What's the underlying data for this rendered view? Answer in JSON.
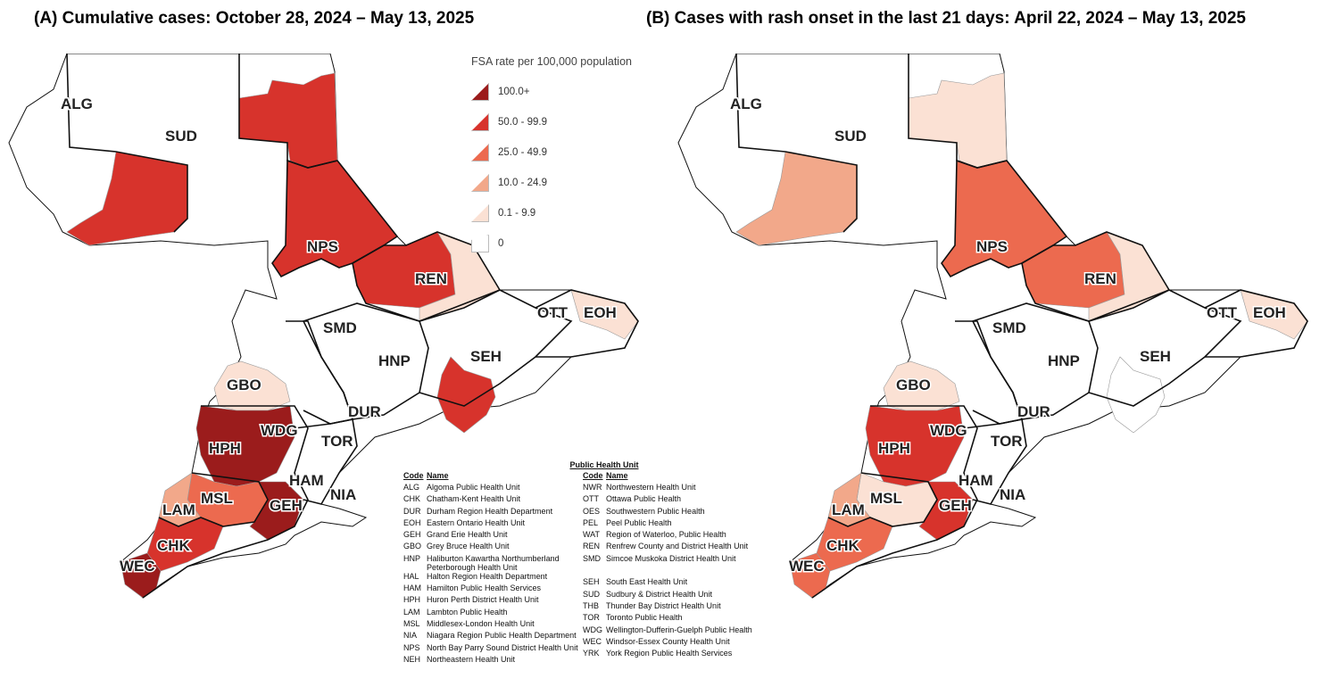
{
  "titles": {
    "a": "(A) Cumulative cases: October 28, 2024 – May 13, 2025",
    "b": "(B) Cases with rash onset in the last 21 days: April 22, 2024 – May 13, 2025"
  },
  "legend": {
    "title": "FSA rate per 100,000 population",
    "classes": [
      {
        "label": "100.0+",
        "color": "#9b1c1c"
      },
      {
        "label": "50.0 - 99.9",
        "color": "#d7332c"
      },
      {
        "label": "25.0 - 49.9",
        "color": "#ec6a4f"
      },
      {
        "label": "10.0 - 24.9",
        "color": "#f2a88a"
      },
      {
        "label": "0.1 - 9.9",
        "color": "#fbe1d4"
      },
      {
        "label": "0",
        "color": "#ffffff"
      }
    ]
  },
  "map_labels": {
    "alg": "ALG",
    "sud": "SUD",
    "nps": "NPS",
    "ren": "REN",
    "ott": "OTT",
    "eoh": "EOH",
    "smd": "SMD",
    "hnp": "HNP",
    "seh": "SEH",
    "gbo": "GBO",
    "dur": "DUR",
    "wdg": "WDG",
    "hph": "HPH",
    "tor": "TOR",
    "ham": "HAM",
    "nia": "NIA",
    "msl": "MSL",
    "lam": "LAM",
    "geh": "GEH",
    "chk": "CHK",
    "wec": "WEC"
  },
  "region_rates": {
    "a": {
      "sud_east": "#d7332c",
      "north_strip": "#d7332c",
      "nps": "#d7332c",
      "ren": "#d7332c",
      "ren_east": "#fbe1d4",
      "seh_spot": "#d7332c",
      "gbo": "#fbe1d4",
      "hph": "#9b1c1c",
      "msl": "#ec6a4f",
      "lam": "#f2a88a",
      "chk": "#d7332c",
      "wec": "#9b1c1c",
      "geh": "#9b1c1c",
      "ott": "#fbe1d4"
    },
    "b": {
      "sud_east": "#f2a88a",
      "north_strip": "#fbe1d4",
      "nps": "#ec6a4f",
      "ren": "#ec6a4f",
      "ren_east": "#fbe1d4",
      "seh_spot": "#ffffff",
      "gbo": "#fbe1d4",
      "hph": "#d7332c",
      "msl": "#fbe1d4",
      "lam": "#f2a88a",
      "chk": "#ec6a4f",
      "wec": "#ec6a4f",
      "geh": "#d7332c",
      "ott": "#fbe1d4"
    }
  },
  "code_table": {
    "title": "Public Health Unit",
    "code_header": "Code",
    "name_header": "Name",
    "left": [
      {
        "code": "ALG",
        "name": "Algoma Public Health Unit"
      },
      {
        "code": "CHK",
        "name": "Chatham-Kent Health Unit"
      },
      {
        "code": "DUR",
        "name": "Durham Region Health Department"
      },
      {
        "code": "EOH",
        "name": "Eastern Ontario Health Unit"
      },
      {
        "code": "GEH",
        "name": "Grand Erie Health Unit"
      },
      {
        "code": "GBO",
        "name": "Grey Bruce Health Unit"
      },
      {
        "code": "HNP",
        "name": "Haliburton Kawartha Northumberland Peterborough Health Unit"
      },
      {
        "code": "HAL",
        "name": "Halton Region Health Department"
      },
      {
        "code": "HAM",
        "name": "Hamilton Public Health Services"
      },
      {
        "code": "HPH",
        "name": "Huron Perth District Health Unit"
      },
      {
        "code": "LAM",
        "name": "Lambton Public Health"
      },
      {
        "code": "MSL",
        "name": "Middlesex-London Health Unit"
      },
      {
        "code": "NIA",
        "name": "Niagara Region Public Health Department"
      },
      {
        "code": "NPS",
        "name": "North Bay Parry Sound District Health Unit"
      },
      {
        "code": "NEH",
        "name": "Northeastern Health Unit"
      }
    ],
    "right": [
      {
        "code": "NWR",
        "name": "Northwestern Health Unit"
      },
      {
        "code": "OTT",
        "name": "Ottawa Public Health"
      },
      {
        "code": "OES",
        "name": "Southwestern Public Health"
      },
      {
        "code": "PEL",
        "name": "Peel Public Health"
      },
      {
        "code": "WAT",
        "name": "Region of Waterloo, Public Health"
      },
      {
        "code": "REN",
        "name": "Renfrew County and District Health Unit"
      },
      {
        "code": "SMD",
        "name": "Simcoe Muskoka District Health Unit"
      },
      {
        "code": "",
        "name": ""
      },
      {
        "code": "SEH",
        "name": "South East Health Unit"
      },
      {
        "code": "SUD",
        "name": "Sudbury & District Health Unit"
      },
      {
        "code": "THB",
        "name": "Thunder Bay District Health Unit"
      },
      {
        "code": "TOR",
        "name": "Toronto Public Health"
      },
      {
        "code": "WDG",
        "name": "Wellington-Dufferin-Guelph Public Health"
      },
      {
        "code": "WEC",
        "name": "Windsor-Essex County Health Unit"
      },
      {
        "code": "YRK",
        "name": "York Region Public Health Services"
      }
    ]
  }
}
